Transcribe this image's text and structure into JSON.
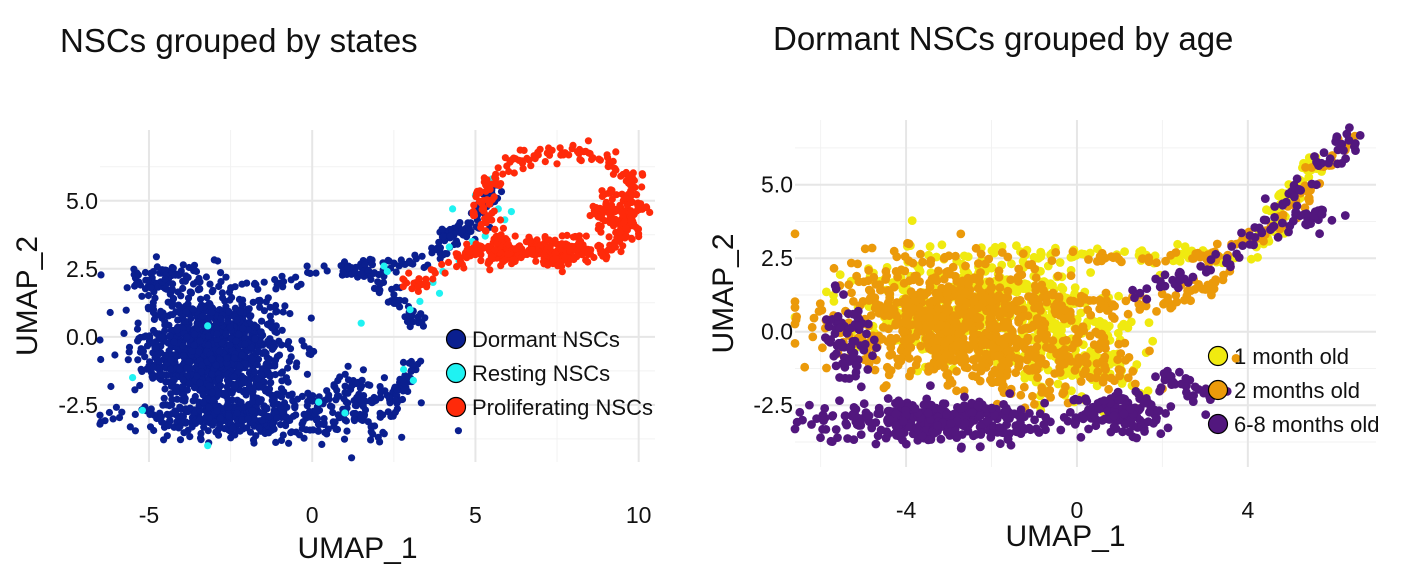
{
  "chart_data": [
    {
      "type": "scatter",
      "title": "NSCs grouped by states",
      "xlabel": "UMAP_1",
      "ylabel": "UMAP_2",
      "xticks": [
        -5,
        0,
        5,
        10
      ],
      "yticks": [
        -2.5,
        0.0,
        2.5,
        5.0
      ],
      "xtick_labels": [
        "-5",
        "0",
        "5",
        "10"
      ],
      "ytick_labels": [
        "-2.5",
        "0.0",
        "2.5",
        "5.0"
      ],
      "xlim": [
        -6.5,
        10.5
      ],
      "ylim": [
        -4.6,
        7.6
      ],
      "grid": true,
      "legend_position": "right",
      "series": [
        {
          "name": "Dormant NSCs",
          "color": "#0a1f8f",
          "clusters": [
            [
              -3,
              -0.5,
              2.2,
              2.1,
              1100
            ],
            [
              -2,
              -2.9,
              3.6,
              0.8,
              350
            ],
            [
              1.5,
              -2.5,
              1.5,
              1.2,
              120
            ],
            [
              -4.5,
              2,
              1.3,
              0.8,
              80
            ]
          ],
          "paths": [
            [
              [
                -2,
                1.8
              ],
              [
                1.5,
                2.6
              ],
              [
                3.5,
                2.8
              ],
              [
                5,
                4.2
              ],
              [
                5.5,
                5.6
              ]
            ],
            [
              [
                1,
                2.7
              ],
              [
                2.5,
                1.5
              ],
              [
                3.3,
                0.5
              ]
            ],
            [
              [
                2.5,
                -2.3
              ],
              [
                3.2,
                -0.8
              ]
            ],
            [
              [
                4,
                3.6
              ],
              [
                4.8,
                3.9
              ]
            ]
          ]
        },
        {
          "name": "Resting NSCs",
          "color": "#1ff2f2",
          "points": [
            [
              -3.2,
              0.4
            ],
            [
              -3.2,
              -4
            ],
            [
              -5.2,
              -2.7
            ],
            [
              -5.5,
              -1.5
            ],
            [
              0.2,
              -2.4
            ],
            [
              1,
              -2.8
            ],
            [
              1.5,
              0.5
            ],
            [
              2.2,
              2.6
            ],
            [
              3,
              1
            ],
            [
              3.3,
              1.3
            ],
            [
              3.7,
              2
            ],
            [
              4,
              2.4
            ],
            [
              4.2,
              3.3
            ],
            [
              4.5,
              2.8
            ],
            [
              4.7,
              3.1
            ],
            [
              4.9,
              3.5
            ],
            [
              5.3,
              3.7
            ],
            [
              5,
              5.2
            ],
            [
              5.5,
              5.8
            ],
            [
              5.7,
              4.7
            ],
            [
              5.9,
              4.3
            ],
            [
              6.1,
              4.6
            ],
            [
              4.3,
              4.7
            ],
            [
              3.9,
              1.6
            ],
            [
              3.1,
              -1.6
            ],
            [
              2.8,
              -1.2
            ],
            [
              2.3,
              2.4
            ]
          ]
        },
        {
          "name": "Proliferating NSCs",
          "color": "#ff2a0a",
          "ring": {
            "cx": 7.6,
            "cy": 4.8,
            "rx": 2.4,
            "ry": 2.0,
            "n": 260
          },
          "clusters": [
            [
              7.5,
              3.2,
              1.2,
              0.5,
              140
            ],
            [
              9.3,
              4.6,
              0.7,
              0.9,
              80
            ],
            [
              5.8,
              3,
              0.6,
              0.4,
              60
            ]
          ],
          "paths": [
            [
              [
                3,
                1.9
              ],
              [
                4.5,
                2.8
              ],
              [
                5.3,
                3.4
              ]
            ]
          ]
        }
      ]
    },
    {
      "type": "scatter",
      "title": "Dormant NSCs grouped by age",
      "xlabel": "UMAP_1",
      "ylabel": "UMAP_2",
      "xticks": [
        -4,
        0,
        4
      ],
      "yticks": [
        -2.5,
        0.0,
        2.5,
        5.0
      ],
      "xtick_labels": [
        "-4",
        "0",
        "4"
      ],
      "ytick_labels": [
        "-2.5",
        "0.0",
        "2.5",
        "5.0"
      ],
      "xlim": [
        -6.6,
        7
      ],
      "ylim": [
        -4.6,
        7.2
      ],
      "grid": true,
      "legend_position": "right",
      "series": [
        {
          "name": "1 month old",
          "color": "#f0ea10",
          "clusters": [
            [
              -2.2,
              0.8,
              3,
              1.7,
              500
            ],
            [
              0,
              -1.2,
              1.5,
              1.2,
              120
            ]
          ],
          "paths": [
            [
              [
                -2,
                2.7
              ],
              [
                2,
                2.6
              ],
              [
                4,
                2.5
              ]
            ],
            [
              [
                4.2,
                2.8
              ],
              [
                5,
                4.5
              ],
              [
                5.6,
                5.8
              ]
            ]
          ]
        },
        {
          "name": "2 months old",
          "color": "#eb9a0a",
          "clusters": [
            [
              -3,
              0.5,
              2.8,
              1.9,
              700
            ],
            [
              -1,
              -1,
              2.5,
              1.4,
              200
            ]
          ],
          "paths": [
            [
              [
                -1.5,
                2.5
              ],
              [
                3,
                2.5
              ],
              [
                5,
                3.8
              ],
              [
                6.3,
                6.7
              ]
            ],
            [
              [
                0,
                1
              ],
              [
                2,
                1
              ],
              [
                3.5,
                2
              ]
            ]
          ]
        },
        {
          "name": "6-8 months old",
          "color": "#52177e",
          "clusters": [
            [
              -3.4,
              -3,
              2.8,
              0.8,
              380
            ],
            [
              -5.4,
              -0.3,
              0.6,
              1.5,
              70
            ],
            [
              1.1,
              -2.8,
              1.2,
              0.7,
              120
            ]
          ],
          "paths": [
            [
              [
                2,
                -1.5
              ],
              [
                3.2,
                -2.2
              ]
            ],
            [
              [
                1.5,
                1.2
              ],
              [
                3.5,
                2.4
              ],
              [
                5.2,
                4.8
              ],
              [
                6.5,
                6.8
              ]
            ],
            [
              [
                4.5,
                3.3
              ],
              [
                6,
                4.2
              ]
            ]
          ]
        }
      ]
    }
  ]
}
